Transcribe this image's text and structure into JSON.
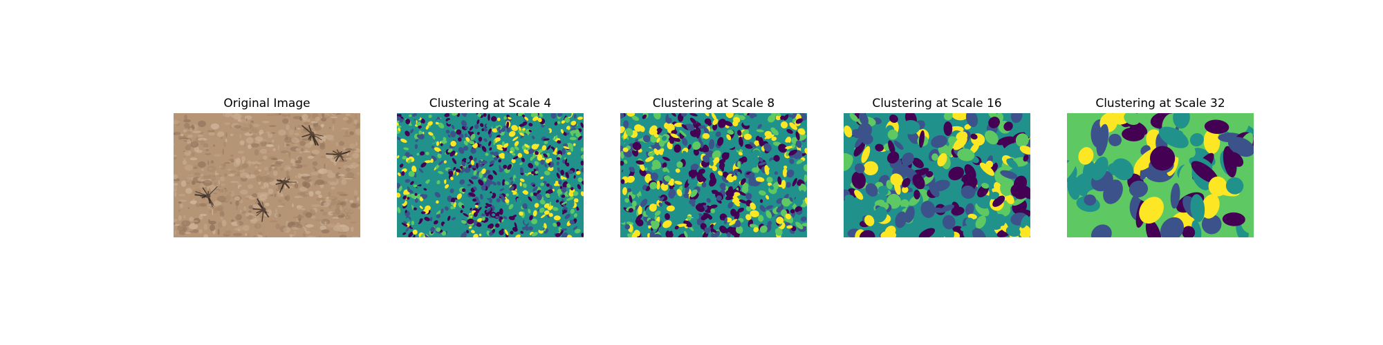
{
  "panels": [
    {
      "title": "Original Image",
      "kind": "photo",
      "colors": [
        "#b69577",
        "#a68567",
        "#c8ab8d",
        "#8f7159",
        "#d3b89c",
        "#5a4637",
        "#2e241d"
      ]
    },
    {
      "title": "Clustering at Scale 4",
      "kind": "clusters",
      "colors": [
        "#440154",
        "#3b528b",
        "#21918c",
        "#5ec962",
        "#fde725"
      ]
    },
    {
      "title": "Clustering at Scale 8",
      "kind": "clusters",
      "colors": [
        "#440154",
        "#3b528b",
        "#21918c",
        "#5ec962",
        "#fde725"
      ]
    },
    {
      "title": "Clustering at Scale 16",
      "kind": "clusters",
      "colors": [
        "#440154",
        "#3b528b",
        "#21918c",
        "#5ec962",
        "#fde725"
      ]
    },
    {
      "title": "Clustering at Scale 32",
      "kind": "clusters",
      "colors": [
        "#440154",
        "#3b528b",
        "#21918c",
        "#5ec962",
        "#fde725"
      ]
    }
  ]
}
